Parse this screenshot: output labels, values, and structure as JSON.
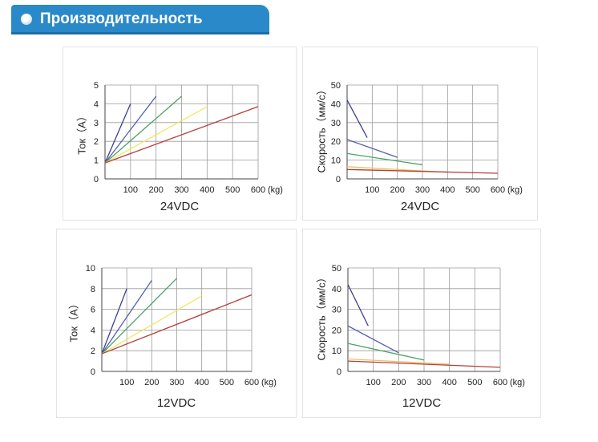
{
  "header": {
    "title": "Производительность"
  },
  "chart_data": [
    {
      "type": "line",
      "caption": "24VDC",
      "ylabel": "Ток（A）",
      "x_unit": "(kg)",
      "xlim": [
        0,
        600
      ],
      "ylim": [
        0,
        5
      ],
      "x_ticks": [
        100,
        200,
        300,
        400,
        500,
        600
      ],
      "y_ticks": [
        0,
        1,
        2,
        3,
        4,
        5
      ],
      "grid": true,
      "series": [
        {
          "color": "#3b3f8f",
          "x": [
            0,
            100
          ],
          "y": [
            0.85,
            4.0
          ]
        },
        {
          "color": "#5560b0",
          "x": [
            0,
            200
          ],
          "y": [
            0.85,
            4.4
          ]
        },
        {
          "color": "#4aa366",
          "x": [
            0,
            300
          ],
          "y": [
            0.85,
            4.4
          ]
        },
        {
          "color": "#f0e860",
          "x": [
            0,
            400
          ],
          "y": [
            0.85,
            3.85
          ]
        },
        {
          "color": "#b3403a",
          "x": [
            0,
            600
          ],
          "y": [
            0.85,
            3.85
          ]
        }
      ]
    },
    {
      "type": "line",
      "caption": "24VDC",
      "ylabel": "Скорость（мм/с）",
      "x_unit": "(kg)",
      "xlim": [
        0,
        600
      ],
      "ylim": [
        0,
        50
      ],
      "x_ticks": [
        100,
        200,
        300,
        400,
        500,
        600
      ],
      "y_ticks": [
        0,
        10,
        20,
        30,
        40,
        50
      ],
      "grid": true,
      "series": [
        {
          "color": "#3b3f8f",
          "x": [
            0,
            80
          ],
          "y": [
            42,
            22
          ]
        },
        {
          "color": "#5560b0",
          "x": [
            0,
            200
          ],
          "y": [
            21,
            11.5
          ]
        },
        {
          "color": "#4aa366",
          "x": [
            0,
            300
          ],
          "y": [
            13.5,
            7.5
          ]
        },
        {
          "color": "#f0c060",
          "x": [
            0,
            400
          ],
          "y": [
            6.5,
            3.5
          ]
        },
        {
          "color": "#b3403a",
          "x": [
            0,
            600
          ],
          "y": [
            5,
            3
          ]
        }
      ]
    },
    {
      "type": "line",
      "caption": "12VDC",
      "ylabel": "Ток（A）",
      "x_unit": "(kg)",
      "xlim": [
        0,
        600
      ],
      "ylim": [
        0,
        10
      ],
      "x_ticks": [
        100,
        200,
        300,
        400,
        500,
        600
      ],
      "y_ticks": [
        0,
        2,
        4,
        6,
        8,
        10
      ],
      "grid": true,
      "series": [
        {
          "color": "#3b3f8f",
          "x": [
            0,
            100
          ],
          "y": [
            1.7,
            8.0
          ]
        },
        {
          "color": "#5560b0",
          "x": [
            0,
            200
          ],
          "y": [
            1.7,
            8.8
          ]
        },
        {
          "color": "#4aa366",
          "x": [
            0,
            300
          ],
          "y": [
            1.7,
            9.0
          ]
        },
        {
          "color": "#f0e860",
          "x": [
            0,
            400
          ],
          "y": [
            1.7,
            7.3
          ]
        },
        {
          "color": "#b3403a",
          "x": [
            0,
            600
          ],
          "y": [
            1.7,
            7.4
          ]
        }
      ]
    },
    {
      "type": "line",
      "caption": "12VDC",
      "ylabel": "Скорость（мм/с）",
      "x_unit": "(kg)",
      "xlim": [
        0,
        600
      ],
      "ylim": [
        0,
        50
      ],
      "x_ticks": [
        100,
        200,
        300,
        400,
        500,
        600
      ],
      "y_ticks": [
        0,
        10,
        20,
        30,
        40,
        50
      ],
      "grid": true,
      "series": [
        {
          "color": "#3b3f8f",
          "x": [
            0,
            80
          ],
          "y": [
            42,
            22
          ]
        },
        {
          "color": "#5560b0",
          "x": [
            0,
            200
          ],
          "y": [
            22,
            9
          ]
        },
        {
          "color": "#4aa366",
          "x": [
            0,
            300
          ],
          "y": [
            13.5,
            5.5
          ]
        },
        {
          "color": "#f0c060",
          "x": [
            0,
            400
          ],
          "y": [
            6,
            3.5
          ]
        },
        {
          "color": "#b3403a",
          "x": [
            0,
            600
          ],
          "y": [
            5,
            2
          ]
        }
      ]
    }
  ]
}
